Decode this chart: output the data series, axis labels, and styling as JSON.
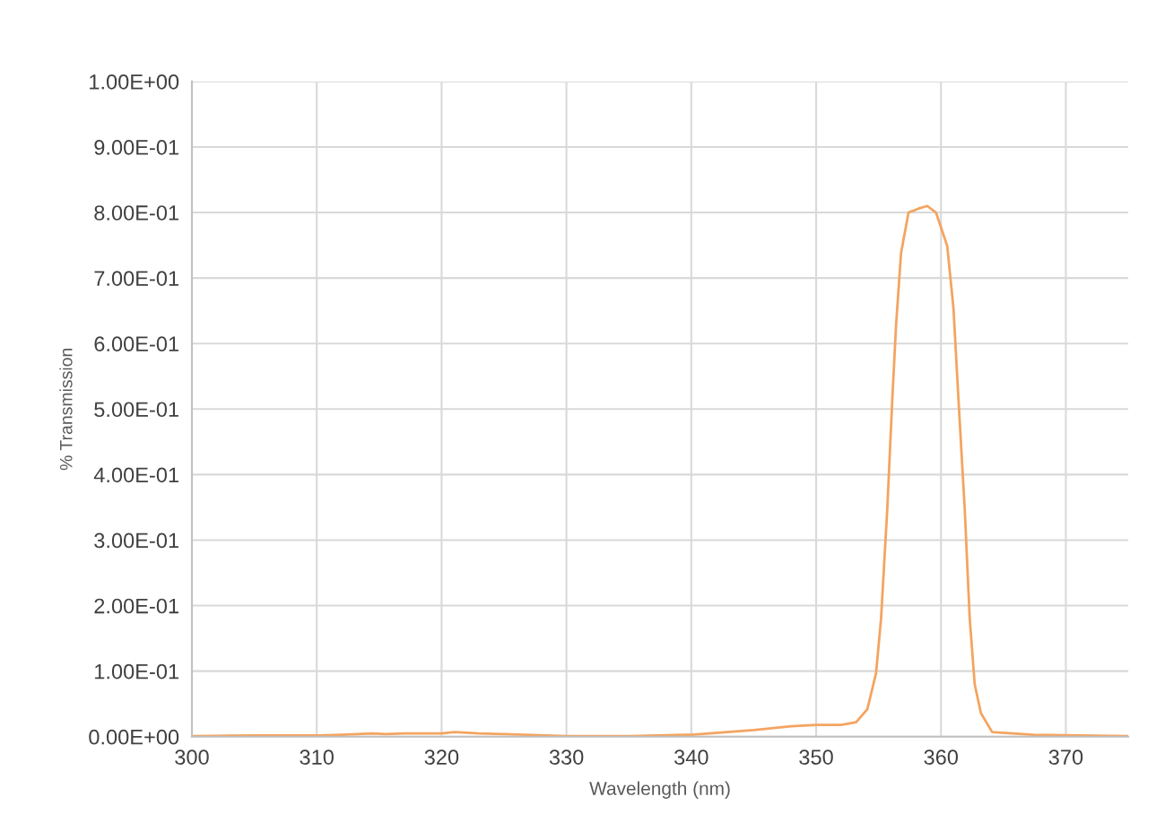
{
  "chart_data": {
    "type": "line",
    "xlabel": "Wavelength (nm)",
    "ylabel": "% Transmission",
    "xlim": [
      300,
      375
    ],
    "xticks": [
      300,
      310,
      320,
      330,
      340,
      350,
      360,
      370
    ],
    "ylim": [
      0,
      1
    ],
    "yticks": [
      {
        "value": 0,
        "label": "0.00E+00"
      },
      {
        "value": 0.1,
        "label": "1.00E-01"
      },
      {
        "value": 0.2,
        "label": "2.00E-01"
      },
      {
        "value": 0.3,
        "label": "3.00E-01"
      },
      {
        "value": 0.4,
        "label": "4.00E-01"
      },
      {
        "value": 0.5,
        "label": "5.00E-01"
      },
      {
        "value": 0.6,
        "label": "6.00E-01"
      },
      {
        "value": 0.7,
        "label": "7.00E-01"
      },
      {
        "value": 0.8,
        "label": "8.00E-01"
      },
      {
        "value": 0.9,
        "label": "9.00E-01"
      },
      {
        "value": 1,
        "label": "1.00E+00"
      }
    ],
    "grid": true,
    "marker": "none",
    "line_style": "solid",
    "series": [
      {
        "color": "#f4a460",
        "x": [
          300,
          305,
          310,
          312,
          314.5,
          315.5,
          317,
          320,
          321,
          323,
          325,
          330,
          335,
          340,
          345,
          348,
          350,
          352,
          353.2,
          354.1,
          354.8,
          355.2,
          355.7,
          356.1,
          356.4,
          356.8,
          357.4,
          358.2,
          358.9,
          359.6,
          360.5,
          361.0,
          361.4,
          361.9,
          362.3,
          362.7,
          363.2,
          364.1,
          367.4,
          375
        ],
        "values": [
          0.001,
          0.002,
          0.002,
          0.003,
          0.005,
          0.004,
          0.005,
          0.005,
          0.007,
          0.005,
          0.004,
          0.001,
          0.001,
          0.003,
          0.01,
          0.016,
          0.018,
          0.018,
          0.022,
          0.042,
          0.097,
          0.18,
          0.348,
          0.515,
          0.627,
          0.738,
          0.8,
          0.806,
          0.81,
          0.8,
          0.749,
          0.654,
          0.515,
          0.348,
          0.181,
          0.08,
          0.036,
          0.007,
          0.003,
          0.001
        ]
      }
    ]
  }
}
